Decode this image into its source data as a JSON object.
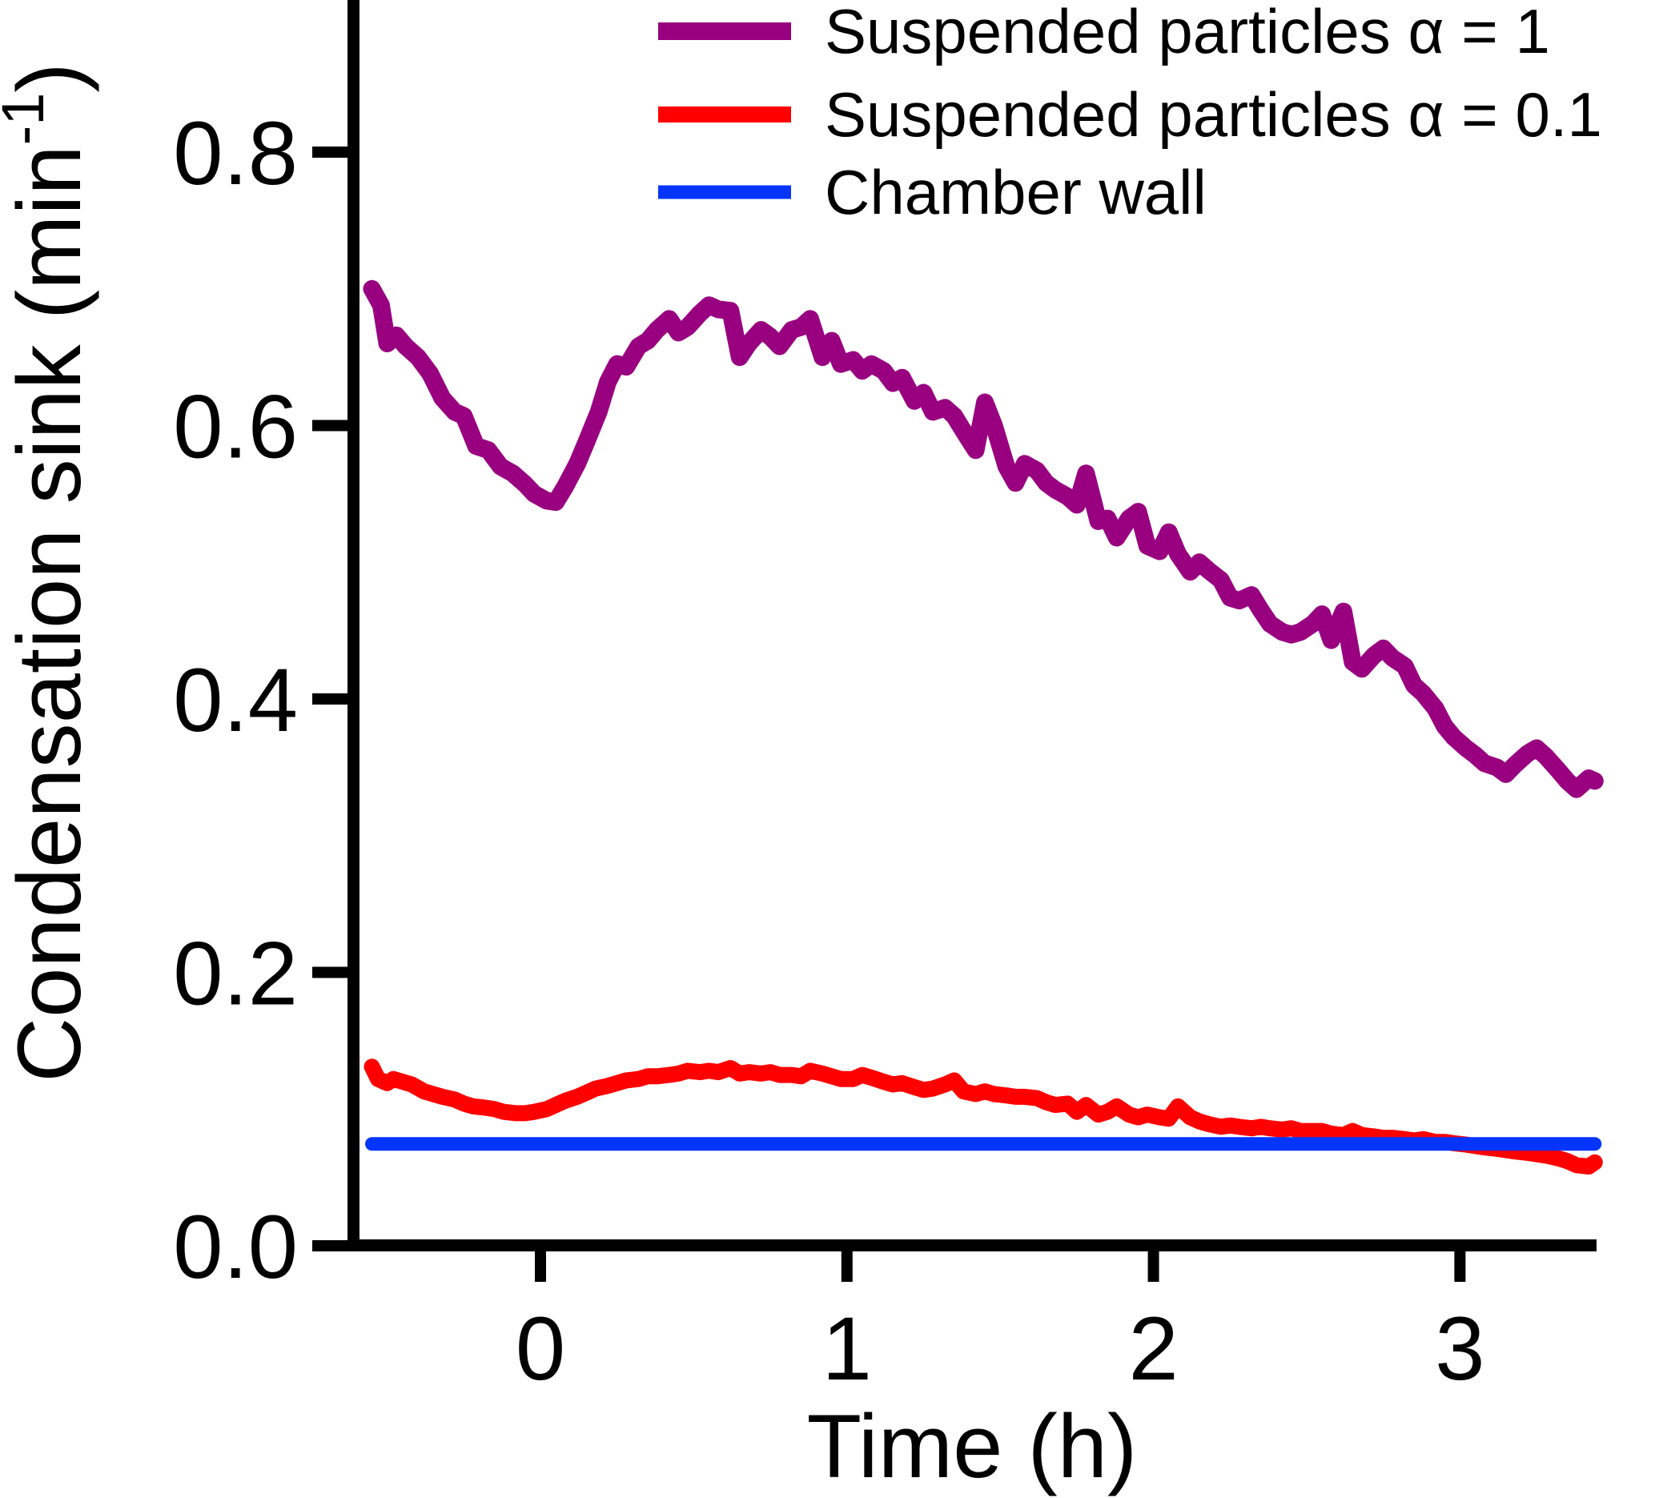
{
  "figure": {
    "background_color": "#ffffff",
    "axis_color": "#000000",
    "tick_font_size": 112,
    "label_font_size": 112,
    "legend_font_size": 78
  },
  "chart_data": {
    "type": "line",
    "title": "",
    "xlabel": "Time (h)",
    "ylabel": "Condensation sink (min⁻¹)",
    "ylabel_parts": {
      "prefix": "Condensation sink (min",
      "superscript": "-1",
      "suffix": ")"
    },
    "xlim": [
      -0.61,
      3.45
    ],
    "ylim": [
      0.0,
      0.915
    ],
    "x_ticks": [
      0,
      1,
      2,
      3
    ],
    "x_tick_labels": [
      "0",
      "1",
      "2",
      "3"
    ],
    "y_ticks": [
      0.0,
      0.2,
      0.4,
      0.6,
      0.8
    ],
    "y_tick_labels": [
      "0.0",
      "0.2",
      "0.4",
      "0.6",
      "0.8"
    ],
    "grid": false,
    "legend_position": "top-right",
    "series": [
      {
        "name": "Suspended particles α =  1",
        "color": "#990080",
        "stroke_width": 22,
        "points": [
          [
            -0.55,
            0.7
          ],
          [
            -0.52,
            0.688
          ],
          [
            -0.5,
            0.66
          ],
          [
            -0.47,
            0.666
          ],
          [
            -0.44,
            0.658
          ],
          [
            -0.4,
            0.65
          ],
          [
            -0.36,
            0.638
          ],
          [
            -0.32,
            0.62
          ],
          [
            -0.28,
            0.61
          ],
          [
            -0.25,
            0.607
          ],
          [
            -0.21,
            0.585
          ],
          [
            -0.17,
            0.582
          ],
          [
            -0.13,
            0.57
          ],
          [
            -0.09,
            0.565
          ],
          [
            -0.05,
            0.557
          ],
          [
            -0.02,
            0.55
          ],
          [
            0.02,
            0.545
          ],
          [
            0.05,
            0.544
          ],
          [
            0.08,
            0.555
          ],
          [
            0.12,
            0.572
          ],
          [
            0.15,
            0.588
          ],
          [
            0.19,
            0.61
          ],
          [
            0.22,
            0.632
          ],
          [
            0.25,
            0.645
          ],
          [
            0.28,
            0.643
          ],
          [
            0.32,
            0.658
          ],
          [
            0.35,
            0.662
          ],
          [
            0.38,
            0.67
          ],
          [
            0.42,
            0.678
          ],
          [
            0.45,
            0.668
          ],
          [
            0.48,
            0.672
          ],
          [
            0.52,
            0.682
          ],
          [
            0.55,
            0.688
          ],
          [
            0.58,
            0.685
          ],
          [
            0.62,
            0.684
          ],
          [
            0.65,
            0.65
          ],
          [
            0.68,
            0.66
          ],
          [
            0.72,
            0.67
          ],
          [
            0.75,
            0.665
          ],
          [
            0.78,
            0.658
          ],
          [
            0.82,
            0.67
          ],
          [
            0.85,
            0.672
          ],
          [
            0.88,
            0.678
          ],
          [
            0.92,
            0.65
          ],
          [
            0.95,
            0.662
          ],
          [
            0.98,
            0.645
          ],
          [
            1.02,
            0.648
          ],
          [
            1.05,
            0.64
          ],
          [
            1.08,
            0.645
          ],
          [
            1.12,
            0.64
          ],
          [
            1.15,
            0.631
          ],
          [
            1.18,
            0.635
          ],
          [
            1.22,
            0.618
          ],
          [
            1.25,
            0.624
          ],
          [
            1.28,
            0.61
          ],
          [
            1.32,
            0.613
          ],
          [
            1.35,
            0.607
          ],
          [
            1.38,
            0.596
          ],
          [
            1.42,
            0.582
          ],
          [
            1.45,
            0.617
          ],
          [
            1.48,
            0.6
          ],
          [
            1.52,
            0.57
          ],
          [
            1.55,
            0.558
          ],
          [
            1.58,
            0.572
          ],
          [
            1.62,
            0.567
          ],
          [
            1.65,
            0.558
          ],
          [
            1.68,
            0.553
          ],
          [
            1.72,
            0.548
          ],
          [
            1.75,
            0.542
          ],
          [
            1.78,
            0.565
          ],
          [
            1.82,
            0.53
          ],
          [
            1.85,
            0.532
          ],
          [
            1.88,
            0.518
          ],
          [
            1.92,
            0.532
          ],
          [
            1.95,
            0.537
          ],
          [
            1.98,
            0.512
          ],
          [
            2.02,
            0.508
          ],
          [
            2.05,
            0.522
          ],
          [
            2.08,
            0.506
          ],
          [
            2.12,
            0.493
          ],
          [
            2.15,
            0.5
          ],
          [
            2.18,
            0.494
          ],
          [
            2.22,
            0.487
          ],
          [
            2.25,
            0.474
          ],
          [
            2.28,
            0.472
          ],
          [
            2.32,
            0.476
          ],
          [
            2.35,
            0.465
          ],
          [
            2.38,
            0.455
          ],
          [
            2.42,
            0.449
          ],
          [
            2.45,
            0.447
          ],
          [
            2.48,
            0.449
          ],
          [
            2.52,
            0.455
          ],
          [
            2.55,
            0.462
          ],
          [
            2.58,
            0.443
          ],
          [
            2.62,
            0.464
          ],
          [
            2.65,
            0.427
          ],
          [
            2.68,
            0.422
          ],
          [
            2.72,
            0.432
          ],
          [
            2.75,
            0.437
          ],
          [
            2.78,
            0.43
          ],
          [
            2.82,
            0.424
          ],
          [
            2.85,
            0.41
          ],
          [
            2.88,
            0.404
          ],
          [
            2.92,
            0.393
          ],
          [
            2.95,
            0.38
          ],
          [
            2.98,
            0.372
          ],
          [
            3.02,
            0.364
          ],
          [
            3.05,
            0.359
          ],
          [
            3.08,
            0.353
          ],
          [
            3.12,
            0.35
          ],
          [
            3.15,
            0.345
          ],
          [
            3.18,
            0.352
          ],
          [
            3.22,
            0.36
          ],
          [
            3.25,
            0.364
          ],
          [
            3.28,
            0.358
          ],
          [
            3.32,
            0.348
          ],
          [
            3.35,
            0.34
          ],
          [
            3.38,
            0.334
          ],
          [
            3.42,
            0.342
          ],
          [
            3.44,
            0.34
          ]
        ]
      },
      {
        "name": "Suspended particles α = 0.1",
        "color": "#ff0000",
        "stroke_width": 20,
        "points": [
          [
            -0.55,
            0.131
          ],
          [
            -0.53,
            0.122
          ],
          [
            -0.5,
            0.119
          ],
          [
            -0.48,
            0.122
          ],
          [
            -0.45,
            0.12
          ],
          [
            -0.42,
            0.118
          ],
          [
            -0.38,
            0.113
          ],
          [
            -0.35,
            0.111
          ],
          [
            -0.32,
            0.109
          ],
          [
            -0.28,
            0.107
          ],
          [
            -0.25,
            0.104
          ],
          [
            -0.22,
            0.102
          ],
          [
            -0.18,
            0.101
          ],
          [
            -0.15,
            0.1
          ],
          [
            -0.12,
            0.098
          ],
          [
            -0.08,
            0.097
          ],
          [
            -0.05,
            0.097
          ],
          [
            -0.02,
            0.098
          ],
          [
            0.02,
            0.1
          ],
          [
            0.05,
            0.103
          ],
          [
            0.08,
            0.106
          ],
          [
            0.12,
            0.109
          ],
          [
            0.15,
            0.112
          ],
          [
            0.18,
            0.115
          ],
          [
            0.22,
            0.117
          ],
          [
            0.25,
            0.119
          ],
          [
            0.28,
            0.121
          ],
          [
            0.32,
            0.122
          ],
          [
            0.35,
            0.124
          ],
          [
            0.38,
            0.124
          ],
          [
            0.42,
            0.125
          ],
          [
            0.45,
            0.126
          ],
          [
            0.48,
            0.128
          ],
          [
            0.52,
            0.127
          ],
          [
            0.55,
            0.128
          ],
          [
            0.58,
            0.127
          ],
          [
            0.62,
            0.13
          ],
          [
            0.65,
            0.126
          ],
          [
            0.68,
            0.127
          ],
          [
            0.72,
            0.126
          ],
          [
            0.75,
            0.127
          ],
          [
            0.78,
            0.125
          ],
          [
            0.82,
            0.125
          ],
          [
            0.85,
            0.124
          ],
          [
            0.88,
            0.128
          ],
          [
            0.92,
            0.126
          ],
          [
            0.95,
            0.124
          ],
          [
            0.98,
            0.122
          ],
          [
            1.02,
            0.122
          ],
          [
            1.05,
            0.125
          ],
          [
            1.08,
            0.123
          ],
          [
            1.12,
            0.12
          ],
          [
            1.15,
            0.118
          ],
          [
            1.18,
            0.119
          ],
          [
            1.22,
            0.116
          ],
          [
            1.25,
            0.114
          ],
          [
            1.28,
            0.115
          ],
          [
            1.32,
            0.118
          ],
          [
            1.35,
            0.121
          ],
          [
            1.38,
            0.113
          ],
          [
            1.42,
            0.111
          ],
          [
            1.45,
            0.113
          ],
          [
            1.48,
            0.111
          ],
          [
            1.52,
            0.11
          ],
          [
            1.55,
            0.109
          ],
          [
            1.58,
            0.109
          ],
          [
            1.62,
            0.108
          ],
          [
            1.65,
            0.105
          ],
          [
            1.68,
            0.103
          ],
          [
            1.72,
            0.104
          ],
          [
            1.75,
            0.098
          ],
          [
            1.78,
            0.103
          ],
          [
            1.82,
            0.096
          ],
          [
            1.85,
            0.098
          ],
          [
            1.88,
            0.102
          ],
          [
            1.92,
            0.096
          ],
          [
            1.95,
            0.094
          ],
          [
            1.98,
            0.096
          ],
          [
            2.02,
            0.094
          ],
          [
            2.05,
            0.093
          ],
          [
            2.08,
            0.102
          ],
          [
            2.12,
            0.094
          ],
          [
            2.15,
            0.091
          ],
          [
            2.18,
            0.089
          ],
          [
            2.22,
            0.087
          ],
          [
            2.25,
            0.088
          ],
          [
            2.28,
            0.087
          ],
          [
            2.32,
            0.086
          ],
          [
            2.35,
            0.087
          ],
          [
            2.38,
            0.086
          ],
          [
            2.42,
            0.085
          ],
          [
            2.45,
            0.086
          ],
          [
            2.48,
            0.084
          ],
          [
            2.52,
            0.084
          ],
          [
            2.55,
            0.084
          ],
          [
            2.58,
            0.082
          ],
          [
            2.62,
            0.081
          ],
          [
            2.65,
            0.084
          ],
          [
            2.68,
            0.081
          ],
          [
            2.72,
            0.08
          ],
          [
            2.75,
            0.079
          ],
          [
            2.78,
            0.079
          ],
          [
            2.82,
            0.078
          ],
          [
            2.85,
            0.077
          ],
          [
            2.88,
            0.078
          ],
          [
            2.92,
            0.076
          ],
          [
            2.95,
            0.076
          ],
          [
            2.98,
            0.075
          ],
          [
            3.02,
            0.074
          ],
          [
            3.05,
            0.073
          ],
          [
            3.08,
            0.072
          ],
          [
            3.12,
            0.071
          ],
          [
            3.15,
            0.07
          ],
          [
            3.18,
            0.069
          ],
          [
            3.22,
            0.068
          ],
          [
            3.25,
            0.067
          ],
          [
            3.28,
            0.066
          ],
          [
            3.32,
            0.064
          ],
          [
            3.35,
            0.062
          ],
          [
            3.38,
            0.059
          ],
          [
            3.42,
            0.058
          ],
          [
            3.44,
            0.061
          ]
        ]
      },
      {
        "name": "Chamber wall",
        "color": "#0535fa",
        "stroke_width": 17,
        "points": [
          [
            -0.55,
            0.0745
          ],
          [
            3.44,
            0.0745
          ]
        ]
      }
    ]
  }
}
